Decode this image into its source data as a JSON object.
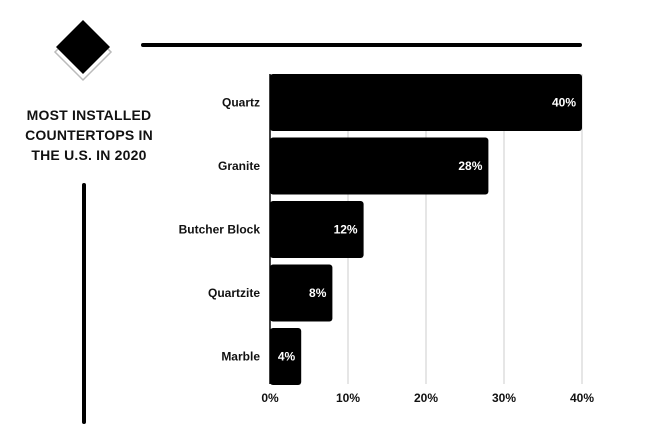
{
  "title_lines": [
    "MOST INSTALLED",
    "COUNTERTOPS IN",
    "THE U.S. IN 2020"
  ],
  "colors": {
    "bar": "#000000",
    "grid": "#cccccc",
    "value_text": "#ffffff"
  },
  "logo_icon": "diamond-logo-icon",
  "chart_data": {
    "type": "bar",
    "orientation": "horizontal",
    "title": "MOST INSTALLED COUNTERTOPS IN THE U.S. IN 2020",
    "categories": [
      "Quartz",
      "Granite",
      "Butcher Block",
      "Quartzite",
      "Marble"
    ],
    "values": [
      40,
      28,
      12,
      8,
      4
    ],
    "value_labels": [
      "40%",
      "28%",
      "12%",
      "8%",
      "4%"
    ],
    "xlim": [
      0,
      40
    ],
    "xticks": [
      0,
      10,
      20,
      30,
      40
    ],
    "xtick_labels": [
      "0%",
      "10%",
      "20%",
      "30%",
      "40%"
    ],
    "grid": "vertical",
    "xlabel": "",
    "ylabel": ""
  }
}
